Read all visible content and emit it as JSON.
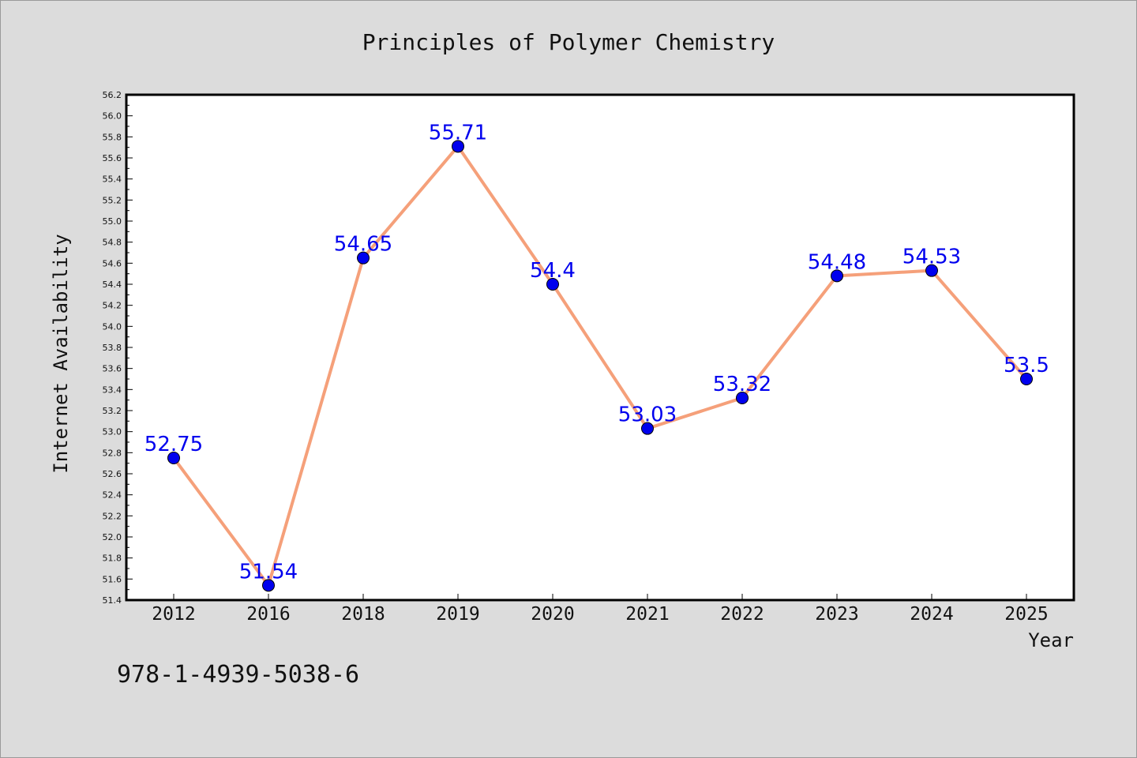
{
  "chart_data": {
    "type": "line",
    "title": "Principles of Polymer Chemistry",
    "xlabel": "Year",
    "ylabel": "Internet Availability",
    "categories": [
      "2012",
      "2016",
      "2018",
      "2019",
      "2020",
      "2021",
      "2022",
      "2023",
      "2024",
      "2025"
    ],
    "values": [
      52.75,
      51.54,
      54.65,
      55.71,
      54.4,
      53.03,
      53.32,
      54.48,
      54.53,
      53.5
    ],
    "data_labels": [
      "52.75",
      "51.54",
      "54.65",
      "55.71",
      "54.4",
      "53.03",
      "53.32",
      "54.48",
      "54.53",
      "53.5"
    ],
    "ylim": [
      51.4,
      56.2
    ],
    "yticks": [
      "51.4",
      "51.6",
      "51.8",
      "52.0",
      "52.2",
      "52.4",
      "52.6",
      "52.8",
      "53.0",
      "53.2",
      "53.4",
      "53.6",
      "53.8",
      "54.0",
      "54.2",
      "54.4",
      "54.6",
      "54.8",
      "55.0",
      "55.2",
      "55.4",
      "55.6",
      "55.8",
      "56.0",
      "56.2"
    ],
    "grid": false,
    "legend": "none",
    "colors": {
      "line": "#f5a07a",
      "marker": "#0000ee",
      "label": "#0000ee",
      "background": "#dcdcdc",
      "plot_background": "#ffffff"
    }
  },
  "footnote": "978-1-4939-5038-6"
}
